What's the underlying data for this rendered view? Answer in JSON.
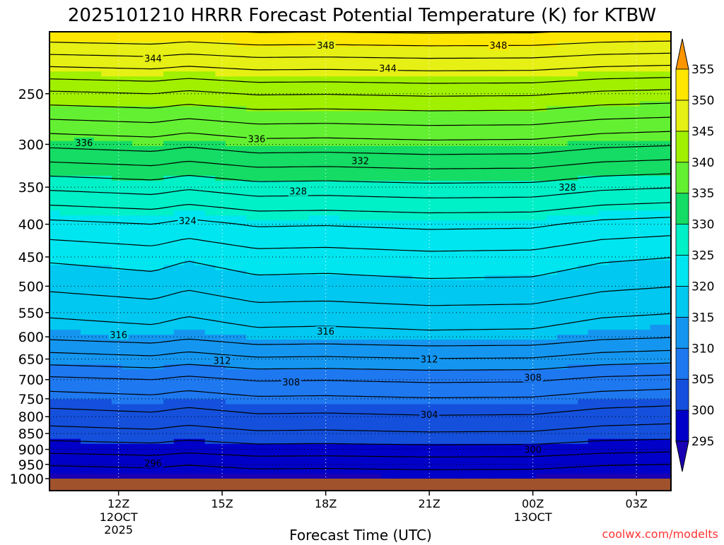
{
  "chart_data": {
    "type": "heatmap",
    "title": "2025101210 HRRR Forecast Potential Temperature (K) for KTBW",
    "xlabel": "Forecast Time (UTC)",
    "ylabel": "",
    "credit": "coolwx.com/modelts",
    "y_scale": "log-pressure",
    "ylim": [
      1000,
      200
    ],
    "xlim_hours": [
      10,
      28
    ],
    "x_ticks": [
      {
        "hour": 12,
        "label": "12Z",
        "sub1": "12OCT",
        "sub2": "2025"
      },
      {
        "hour": 15,
        "label": "15Z",
        "sub1": "",
        "sub2": ""
      },
      {
        "hour": 18,
        "label": "18Z",
        "sub1": "",
        "sub2": ""
      },
      {
        "hour": 21,
        "label": "21Z",
        "sub1": "",
        "sub2": ""
      },
      {
        "hour": 24,
        "label": "00Z",
        "sub1": "13OCT",
        "sub2": ""
      },
      {
        "hour": 27,
        "label": "03Z",
        "sub1": "",
        "sub2": ""
      }
    ],
    "y_ticks": [
      250,
      300,
      350,
      400,
      450,
      500,
      550,
      600,
      650,
      700,
      750,
      800,
      850,
      900,
      950,
      1000
    ],
    "colorbar": {
      "levels": [
        295,
        300,
        305,
        310,
        315,
        320,
        325,
        330,
        335,
        340,
        345,
        350,
        355
      ],
      "colors": [
        "#0000c8",
        "#1450dc",
        "#1e78f0",
        "#1496f0",
        "#00c8f0",
        "#00e6f0",
        "#00f0c8",
        "#14dc64",
        "#64f032",
        "#a0f000",
        "#e6f014",
        "#ffe600",
        "#ff9600"
      ],
      "under_color": "#1a00b4",
      "over_color": "#ff9600"
    },
    "ground_color": "#a0522d",
    "contour_interval": 2,
    "contour_labels": [
      {
        "hour": 13.0,
        "p": 220,
        "value": 344
      },
      {
        "hour": 18.0,
        "p": 210,
        "value": 348
      },
      {
        "hour": 23.0,
        "p": 210,
        "value": 348
      },
      {
        "hour": 19.8,
        "p": 228,
        "value": 344
      },
      {
        "hour": 11.0,
        "p": 298,
        "value": 336
      },
      {
        "hour": 16.0,
        "p": 294,
        "value": 336
      },
      {
        "hour": 19.0,
        "p": 318,
        "value": 332
      },
      {
        "hour": 17.2,
        "p": 355,
        "value": 328
      },
      {
        "hour": 25.0,
        "p": 350,
        "value": 328
      },
      {
        "hour": 14.0,
        "p": 395,
        "value": 324
      },
      {
        "hour": 12.0,
        "p": 595,
        "value": 316
      },
      {
        "hour": 18.0,
        "p": 588,
        "value": 316
      },
      {
        "hour": 15.0,
        "p": 653,
        "value": 312
      },
      {
        "hour": 21.0,
        "p": 650,
        "value": 312
      },
      {
        "hour": 17.0,
        "p": 706,
        "value": 308
      },
      {
        "hour": 24.0,
        "p": 694,
        "value": 308
      },
      {
        "hour": 21.0,
        "p": 793,
        "value": 304
      },
      {
        "hour": 24.0,
        "p": 900,
        "value": 300
      },
      {
        "hour": 13.0,
        "p": 945,
        "value": 296
      }
    ],
    "theta_profile": [
      {
        "p": 1000,
        "theta": 294.5
      },
      {
        "p": 950,
        "theta": 296.5
      },
      {
        "p": 900,
        "theta": 299
      },
      {
        "p": 850,
        "theta": 301.5
      },
      {
        "p": 800,
        "theta": 303.5
      },
      {
        "p": 750,
        "theta": 305.5
      },
      {
        "p": 700,
        "theta": 308
      },
      {
        "p": 650,
        "theta": 311.5
      },
      {
        "p": 600,
        "theta": 315
      },
      {
        "p": 550,
        "theta": 317
      },
      {
        "p": 500,
        "theta": 319
      },
      {
        "p": 450,
        "theta": 321
      },
      {
        "p": 400,
        "theta": 324
      },
      {
        "p": 350,
        "theta": 329
      },
      {
        "p": 300,
        "theta": 335
      },
      {
        "p": 250,
        "theta": 342
      },
      {
        "p": 200,
        "theta": 352
      }
    ],
    "time_perturbation": [
      {
        "hour": 10,
        "dtheta": -0.5
      },
      {
        "hour": 13,
        "dtheta": 0.0
      },
      {
        "hour": 14,
        "dtheta": -0.6
      },
      {
        "hour": 16,
        "dtheta": 0.2
      },
      {
        "hour": 18,
        "dtheta": 0.1
      },
      {
        "hour": 21,
        "dtheta": 0.4
      },
      {
        "hour": 24,
        "dtheta": 0.3
      },
      {
        "hour": 26,
        "dtheta": -0.5
      },
      {
        "hour": 28,
        "dtheta": -0.8
      }
    ]
  }
}
